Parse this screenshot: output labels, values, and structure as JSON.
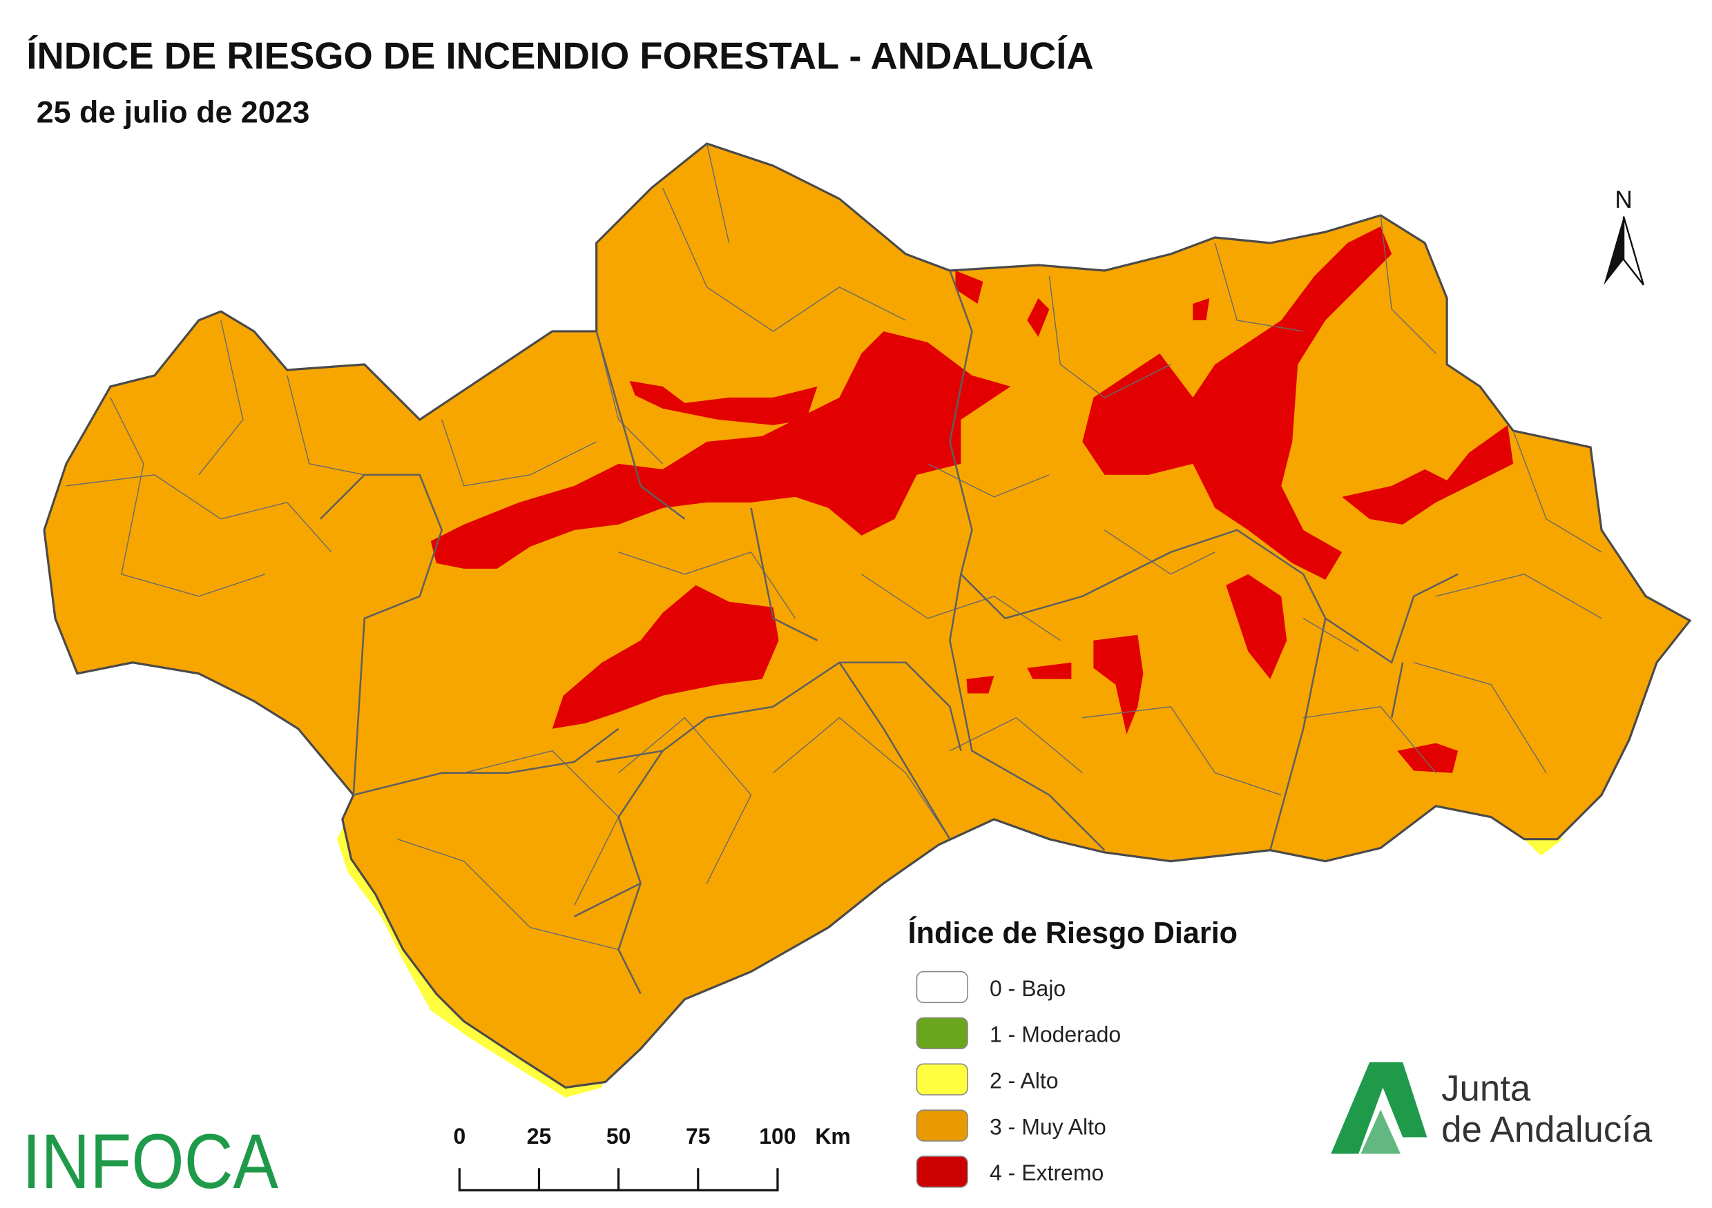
{
  "header": {
    "title": "ÍNDICE DE RIESGO DE INCENDIO FORESTAL - ANDALUCÍA",
    "subtitle": "25 de julio de 2023"
  },
  "north": "N",
  "legend": {
    "title": "Índice de Riesgo Diario",
    "items": [
      {
        "label": "0 - Bajo",
        "color": "#ffffff"
      },
      {
        "label": "1 - Moderado",
        "color": "#6aa51e"
      },
      {
        "label": "2 - Alto",
        "color": "#ffff40"
      },
      {
        "label": "3 - Muy Alto",
        "color": "#e89a00"
      },
      {
        "label": "4 - Extremo",
        "color": "#cc0000"
      }
    ]
  },
  "scale": {
    "ticks": [
      0,
      25,
      50,
      75,
      100
    ],
    "unit": "Km"
  },
  "logos": {
    "infoca": "INFOCA",
    "junta_line1": "Junta",
    "junta_line2": "de Andalucía"
  }
}
